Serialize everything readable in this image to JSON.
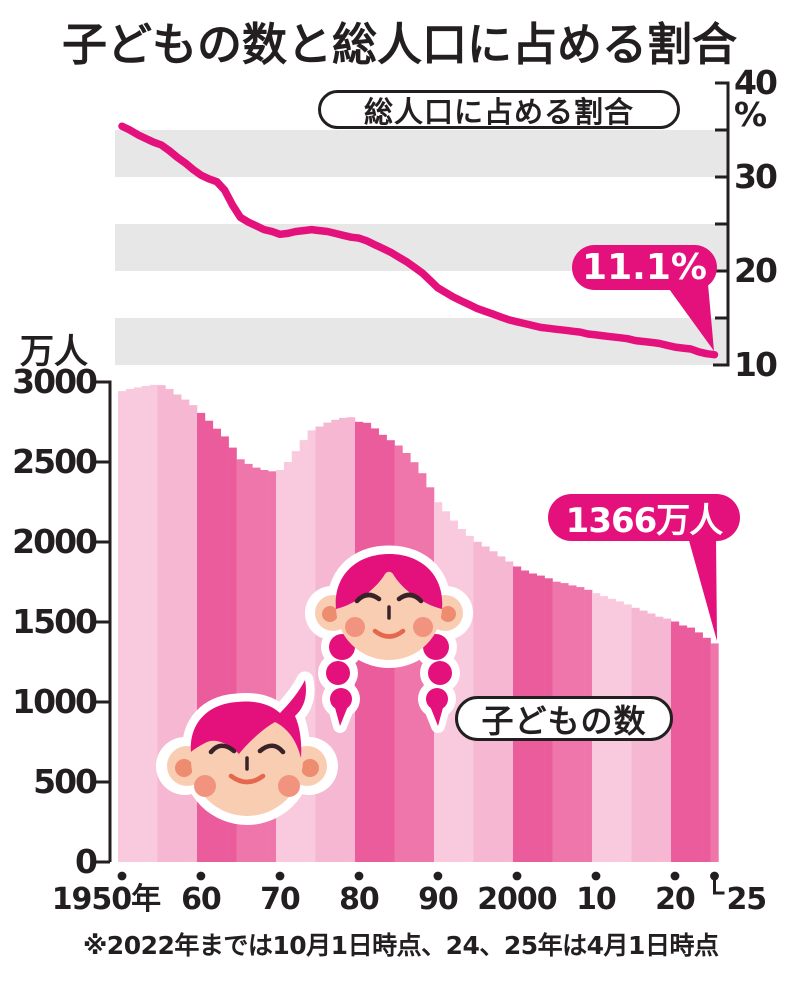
{
  "title": "子どもの数と総人口に占める割合",
  "footnote": "※2022年までは10月1日時点、24、25年は4月1日時点",
  "colors": {
    "accent": "#e4117c",
    "band_gray": "#e7e7e8",
    "axis": "#231f20",
    "skin": "#f9cdb1",
    "ear_inner": "#ee8c70",
    "cheek": "#f2937f",
    "eye": "#3a2328",
    "mouth": "#e4674e"
  },
  "chart_data": [
    {
      "type": "line",
      "name": "総人口に占める割合",
      "unit": "%",
      "years": {
        "start": 1950,
        "end": 2025
      },
      "ylim": [
        10,
        40
      ],
      "axis_side": "right",
      "axis_ticks": [
        40,
        30,
        20,
        10
      ],
      "minor_ticks": [
        35,
        25,
        15
      ],
      "shaded_bands": [
        [
          30,
          35
        ],
        [
          20,
          25
        ],
        [
          10,
          15
        ]
      ],
      "end_label": "11.1%",
      "values": [
        35.4,
        35.0,
        34.5,
        34.1,
        33.7,
        33.4,
        32.8,
        32.1,
        31.5,
        30.8,
        30.2,
        29.8,
        29.5,
        28.6,
        27.0,
        25.7,
        25.2,
        24.8,
        24.4,
        24.2,
        23.9,
        24.0,
        24.2,
        24.3,
        24.4,
        24.3,
        24.2,
        24.0,
        23.8,
        23.6,
        23.5,
        23.2,
        22.8,
        22.4,
        22.0,
        21.5,
        21.0,
        20.4,
        19.8,
        19.0,
        18.2,
        17.7,
        17.2,
        16.8,
        16.4,
        16.0,
        15.7,
        15.4,
        15.1,
        14.8,
        14.6,
        14.4,
        14.2,
        14.0,
        13.9,
        13.8,
        13.7,
        13.6,
        13.5,
        13.3,
        13.2,
        13.1,
        13.0,
        12.9,
        12.8,
        12.6,
        12.5,
        12.4,
        12.3,
        12.1,
        11.9,
        11.8,
        11.7,
        11.4,
        11.2,
        11.1
      ]
    },
    {
      "type": "bar",
      "name": "子どもの数",
      "unit": "万人",
      "years": {
        "start": 1950,
        "end": 2025
      },
      "ylim": [
        0,
        3000
      ],
      "axis_side": "left",
      "axis_ticks": [
        3000,
        2500,
        2000,
        1500,
        1000,
        500,
        0
      ],
      "end_label": "1366万人",
      "bar_colors": {
        "light": [
          "#f9cade",
          "#f5b7d2"
        ],
        "dark": [
          "#ea5c9b",
          "#ef76aa"
        ]
      },
      "values": [
        2943,
        2956,
        2966,
        2975,
        2982,
        2980,
        2956,
        2922,
        2890,
        2855,
        2807,
        2758,
        2708,
        2660,
        2590,
        2517,
        2488,
        2465,
        2450,
        2442,
        2450,
        2500,
        2568,
        2637,
        2698,
        2722,
        2746,
        2764,
        2776,
        2780,
        2751,
        2745,
        2710,
        2670,
        2636,
        2603,
        2556,
        2499,
        2430,
        2342,
        2249,
        2192,
        2134,
        2081,
        2038,
        2001,
        1972,
        1942,
        1910,
        1878,
        1847,
        1822,
        1803,
        1790,
        1773,
        1752,
        1743,
        1729,
        1718,
        1701,
        1680,
        1662,
        1645,
        1629,
        1610,
        1589,
        1571,
        1553,
        1533,
        1521,
        1503,
        1478,
        1465,
        1435,
        1401,
        1366
      ]
    }
  ],
  "x_axis": {
    "labels": [
      {
        "year": 1950,
        "text": "1950年"
      },
      {
        "year": 1960,
        "text": "60"
      },
      {
        "year": 1970,
        "text": "70"
      },
      {
        "year": 1980,
        "text": "80"
      },
      {
        "year": 1990,
        "text": "90"
      },
      {
        "year": 2000,
        "text": "2000"
      },
      {
        "year": 2010,
        "text": "10"
      },
      {
        "year": 2020,
        "text": "20"
      },
      {
        "year": 2025,
        "text": "25",
        "bracket": true
      }
    ]
  }
}
